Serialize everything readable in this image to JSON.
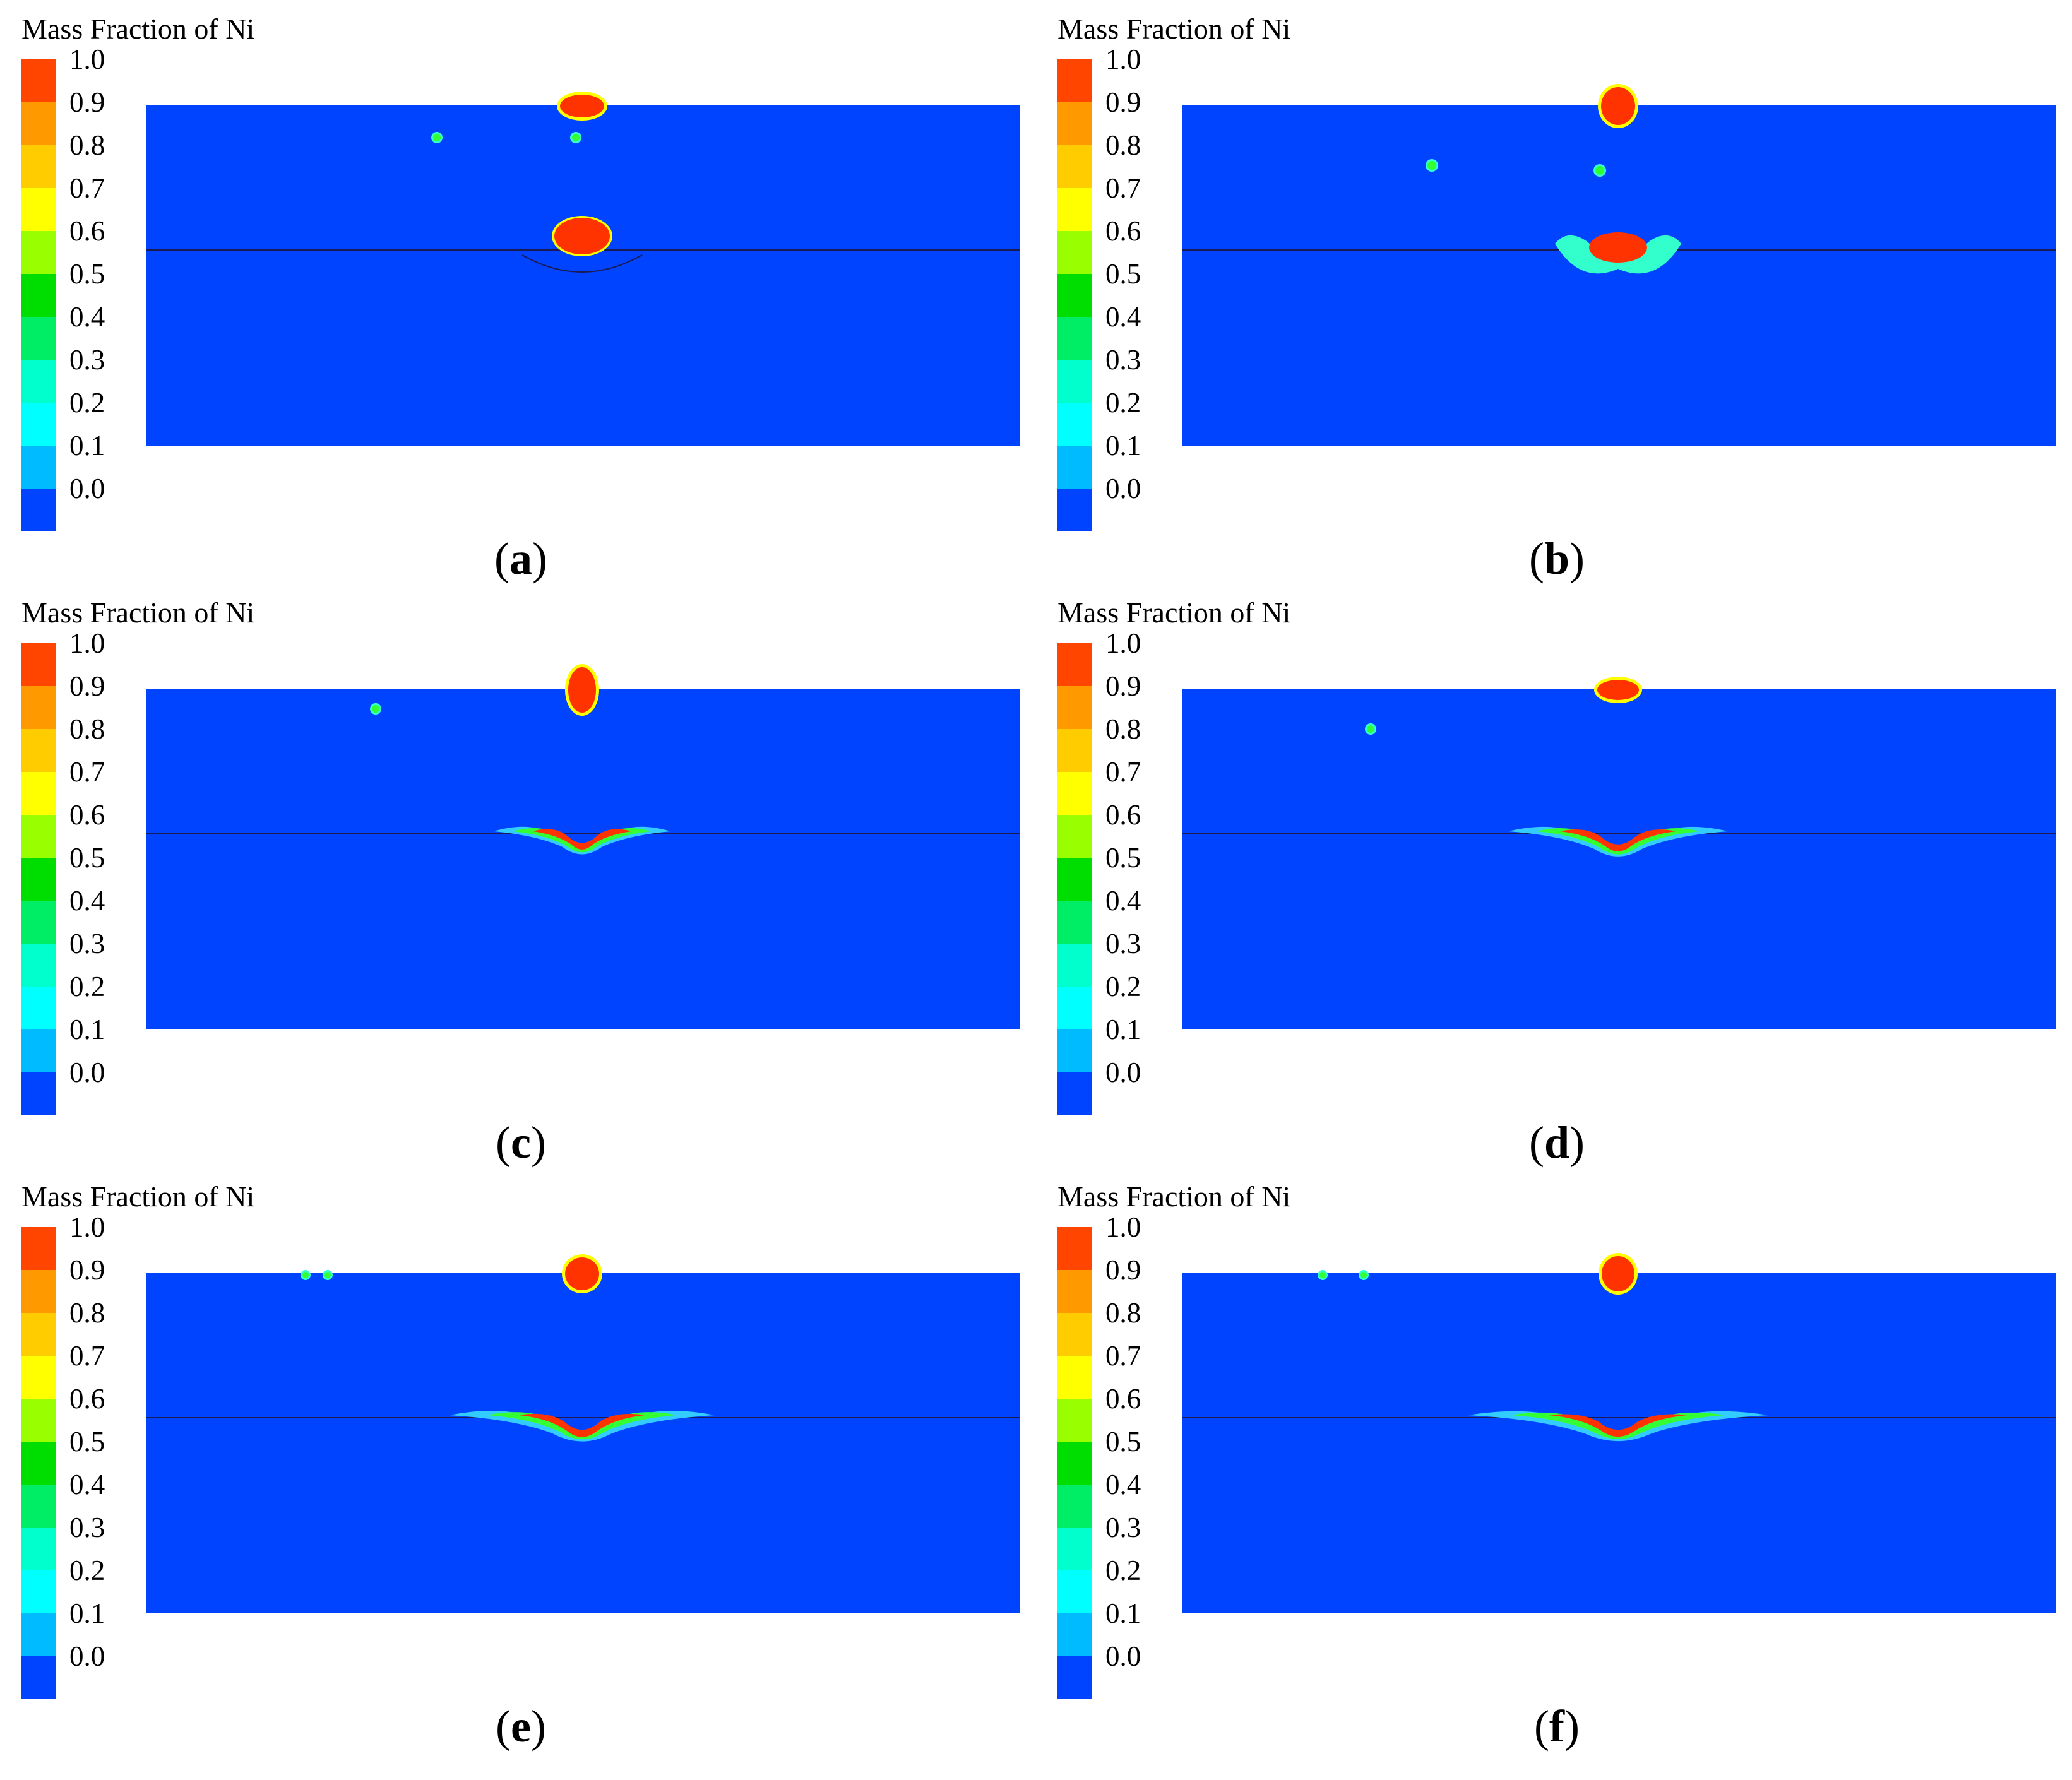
{
  "figure": {
    "legend": {
      "title": "Mass Fraction of Ni",
      "ticks": [
        "1.0",
        "0.9",
        "0.8",
        "0.7",
        "0.6",
        "0.5",
        "0.4",
        "0.3",
        "0.2",
        "0.1",
        "0.0"
      ],
      "colors": [
        "#ff4500",
        "#ff9900",
        "#ffcc00",
        "#ffff00",
        "#99ff00",
        "#00dd00",
        "#00ee66",
        "#00ffcc",
        "#00ffff",
        "#00bbff",
        "#0044ff"
      ]
    },
    "colors": {
      "background_field": "#0044ff",
      "interface_line": "#1a1a55",
      "deposit_red": "#ff3300",
      "deposit_orange": "#ff9900",
      "deposit_yellow": "#ffff00",
      "deposit_green": "#33ff33",
      "deposit_cyan": "#33ffcc",
      "deposit_lightblue": "#33ccff"
    },
    "panels": [
      {
        "caption_letter": "a"
      },
      {
        "caption_letter": "b"
      },
      {
        "caption_letter": "c"
      },
      {
        "caption_letter": "d"
      },
      {
        "caption_letter": "e"
      },
      {
        "caption_letter": "f"
      }
    ]
  }
}
